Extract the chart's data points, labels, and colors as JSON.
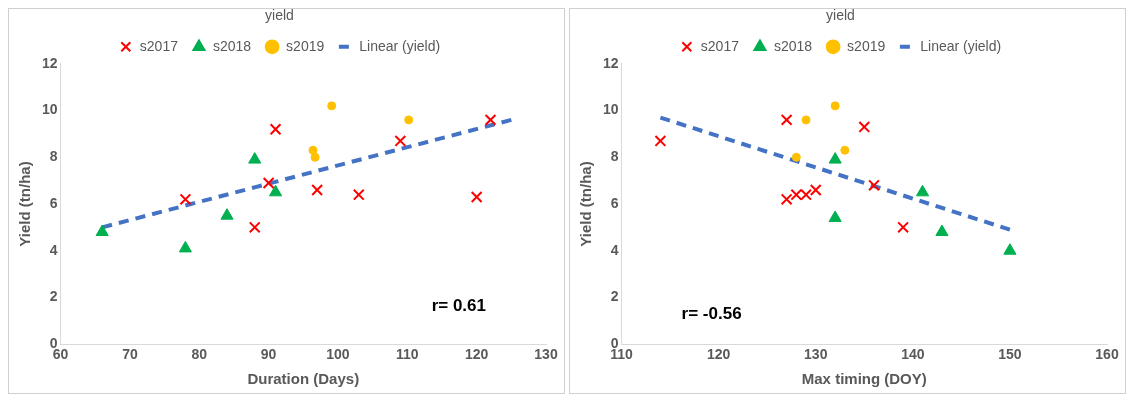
{
  "chart_data": [
    {
      "type": "scatter",
      "xlabel": "Duration (Days)",
      "ylabel": "Yield (tn/ha)",
      "xlim": [
        60,
        130
      ],
      "xticks": [
        60,
        70,
        80,
        90,
        100,
        110,
        120,
        130
      ],
      "ylim": [
        0,
        12
      ],
      "yticks": [
        0,
        2,
        4,
        6,
        8,
        10,
        12
      ],
      "grid": false,
      "legend": "top",
      "legend_title": "yield",
      "annotations": [
        "r= 0.61"
      ],
      "series": [
        {
          "name": "s2017",
          "color": "#ff0000",
          "marker": "cross",
          "x": [
            78,
            88,
            90,
            91,
            97,
            103,
            109,
            120,
            122
          ],
          "values": [
            6.2,
            5.0,
            6.9,
            9.2,
            6.6,
            6.4,
            8.7,
            6.3,
            9.6
          ]
        },
        {
          "name": "s2018",
          "color": "#00b050",
          "marker": "triangle",
          "x": [
            66,
            78,
            84,
            88,
            91
          ],
          "values": [
            4.8,
            4.1,
            5.5,
            7.9,
            6.5
          ]
        },
        {
          "name": "s2019",
          "color": "#ffc000",
          "marker": "circle",
          "x": [
            96.4,
            96.7,
            99.1,
            110.2
          ],
          "values": [
            8.3,
            8.0,
            10.2,
            9.6
          ]
        },
        {
          "name": "Linear (yield)",
          "type": "line",
          "color": "#4472c4",
          "marker": "none",
          "line_style": "dashed",
          "x": [
            66,
            125
          ],
          "values": [
            5.0,
            9.6
          ]
        }
      ]
    },
    {
      "type": "scatter",
      "xlabel": "Max timing (DOY)",
      "ylabel": "Yield (tn/ha)",
      "xlim": [
        110,
        160
      ],
      "xticks": [
        110,
        120,
        130,
        140,
        150,
        160
      ],
      "ylim": [
        0,
        12
      ],
      "yticks": [
        0,
        2,
        4,
        6,
        8,
        10,
        12
      ],
      "grid": false,
      "legend": "top",
      "legend_title": "yield",
      "annotations": [
        "r= -0.56"
      ],
      "series": [
        {
          "name": "s2017",
          "color": "#ff0000",
          "marker": "cross",
          "x": [
            114,
            127,
            127,
            128,
            129,
            130,
            135,
            136,
            139
          ],
          "values": [
            8.7,
            9.6,
            6.2,
            6.4,
            6.4,
            6.6,
            9.3,
            6.8,
            5.0
          ]
        },
        {
          "name": "s2018",
          "color": "#00b050",
          "marker": "triangle",
          "x": [
            132,
            132,
            141,
            143,
            150
          ],
          "values": [
            7.9,
            5.4,
            6.5,
            4.8,
            4.0
          ]
        },
        {
          "name": "s2019",
          "color": "#ffc000",
          "marker": "circle",
          "x": [
            128,
            129,
            132,
            133
          ],
          "values": [
            8.0,
            9.6,
            10.2,
            8.3
          ]
        },
        {
          "name": "Linear (yield)",
          "type": "line",
          "color": "#4472c4",
          "marker": "none",
          "line_style": "dashed",
          "x": [
            114,
            150
          ],
          "values": [
            9.7,
            4.9
          ]
        }
      ]
    }
  ]
}
